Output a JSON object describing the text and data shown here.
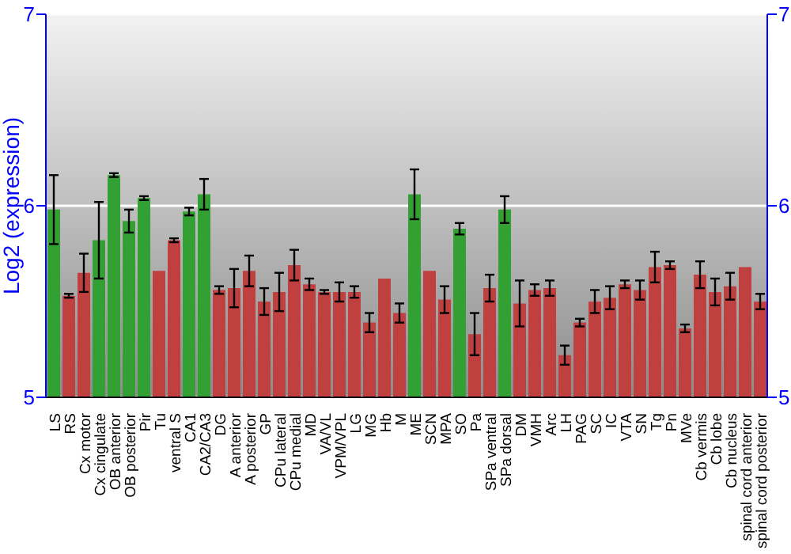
{
  "chart_data": {
    "type": "bar",
    "ylabel": "Log2 (expression)",
    "categories": [
      "LS",
      "RS",
      "Cx motor",
      "Cx cingulate",
      "OB anterior",
      "OB posterior",
      "Pir",
      "Tu",
      "ventral S",
      "CA1",
      "CA2/CA3",
      "DG",
      "A anterior",
      "A posterior",
      "GP",
      "CPu lateral",
      "CPu medial",
      "MD",
      "VA/VL",
      "VPM/VPL",
      "LG",
      "MG",
      "Hb",
      "M",
      "ME",
      "SCN",
      "MPA",
      "SO",
      "Pa",
      "SPa ventral",
      "SPa dorsal",
      "DM",
      "VMH",
      "Arc",
      "LH",
      "PAG",
      "SC",
      "IC",
      "VTA",
      "SN",
      "Tg",
      "Pn",
      "MVe",
      "Cb vermis",
      "Cb lobe",
      "Cb nucleus",
      "spinal cord anterior",
      "spinal cord posterior"
    ],
    "values": [
      5.98,
      5.53,
      5.65,
      5.82,
      6.16,
      5.92,
      6.04,
      5.66,
      5.82,
      5.97,
      6.06,
      5.56,
      5.57,
      5.66,
      5.5,
      5.55,
      5.69,
      5.59,
      5.55,
      5.55,
      5.55,
      5.39,
      5.62,
      5.44,
      6.06,
      5.66,
      5.51,
      5.88,
      5.33,
      5.57,
      5.98,
      5.49,
      5.56,
      5.57,
      5.22,
      5.39,
      5.5,
      5.52,
      5.59,
      5.56,
      5.68,
      5.69,
      5.36,
      5.64,
      5.55,
      5.58,
      5.68,
      5.5
    ],
    "errors": [
      0.18,
      0.01,
      0.1,
      0.2,
      0.01,
      0.06,
      0.01,
      null,
      0.01,
      0.02,
      0.08,
      0.02,
      0.1,
      0.08,
      0.07,
      0.1,
      0.08,
      0.03,
      0.01,
      0.05,
      0.03,
      0.05,
      null,
      0.05,
      0.13,
      null,
      0.07,
      0.03,
      0.11,
      0.07,
      0.07,
      0.12,
      0.03,
      0.04,
      0.05,
      0.02,
      0.06,
      0.06,
      0.02,
      0.05,
      0.08,
      0.02,
      0.02,
      0.07,
      0.07,
      0.07,
      null,
      0.04
    ],
    "colors": [
      "#33a033",
      "#c04040",
      "#c04040",
      "#33a033",
      "#33a033",
      "#33a033",
      "#33a033",
      "#c04040",
      "#c04040",
      "#33a033",
      "#33a033",
      "#c04040",
      "#c04040",
      "#c04040",
      "#c04040",
      "#c04040",
      "#c04040",
      "#c04040",
      "#c04040",
      "#c04040",
      "#c04040",
      "#c04040",
      "#c04040",
      "#c04040",
      "#33a033",
      "#c04040",
      "#c04040",
      "#33a033",
      "#c04040",
      "#c04040",
      "#33a033",
      "#c04040",
      "#c04040",
      "#c04040",
      "#c04040",
      "#c04040",
      "#c04040",
      "#c04040",
      "#c04040",
      "#c04040",
      "#c04040",
      "#c04040",
      "#c04040",
      "#c04040",
      "#c04040",
      "#c04040",
      "#c04040",
      "#c04040"
    ],
    "ylim": [
      5,
      7
    ],
    "yticks": [
      5,
      6,
      7
    ],
    "y2lim": [
      5,
      7
    ],
    "y2ticks": [
      5,
      6,
      7
    ],
    "grid": "y"
  }
}
